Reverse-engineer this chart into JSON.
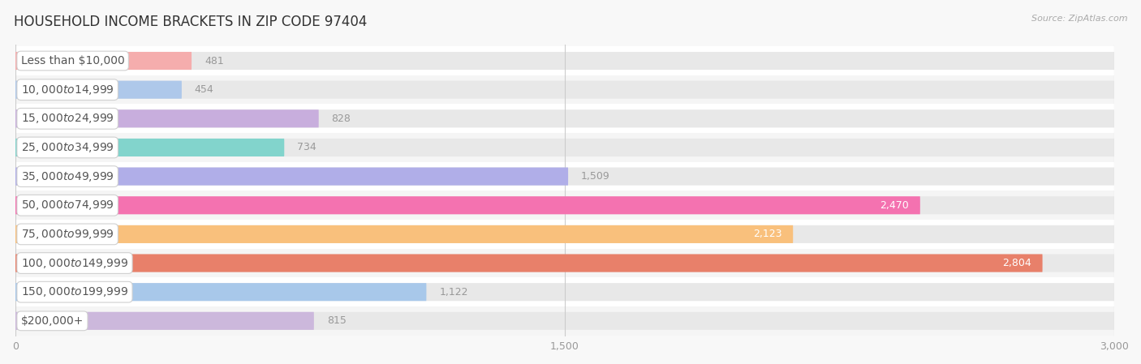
{
  "title": "HOUSEHOLD INCOME BRACKETS IN ZIP CODE 97404",
  "source": "Source: ZipAtlas.com",
  "categories": [
    "Less than $10,000",
    "$10,000 to $14,999",
    "$15,000 to $24,999",
    "$25,000 to $34,999",
    "$35,000 to $49,999",
    "$50,000 to $74,999",
    "$75,000 to $99,999",
    "$100,000 to $149,999",
    "$150,000 to $199,999",
    "$200,000+"
  ],
  "values": [
    481,
    454,
    828,
    734,
    1509,
    2470,
    2123,
    2804,
    1122,
    815
  ],
  "bar_colors": [
    "#f5adad",
    "#aec8ea",
    "#c8aedd",
    "#82d4cc",
    "#b0aee8",
    "#f472b0",
    "#f9c07c",
    "#e8806a",
    "#a8c8ea",
    "#ccb8dc"
  ],
  "row_bg_colors": [
    "#ffffff",
    "#f5f5f5"
  ],
  "value_label_white": [
    false,
    false,
    false,
    false,
    false,
    true,
    true,
    true,
    false,
    false
  ],
  "xlim_max": 3000,
  "xticks": [
    0,
    1500,
    3000
  ],
  "background_color": "#f8f8f8",
  "title_fontsize": 12,
  "label_fontsize": 10,
  "value_fontsize": 9
}
